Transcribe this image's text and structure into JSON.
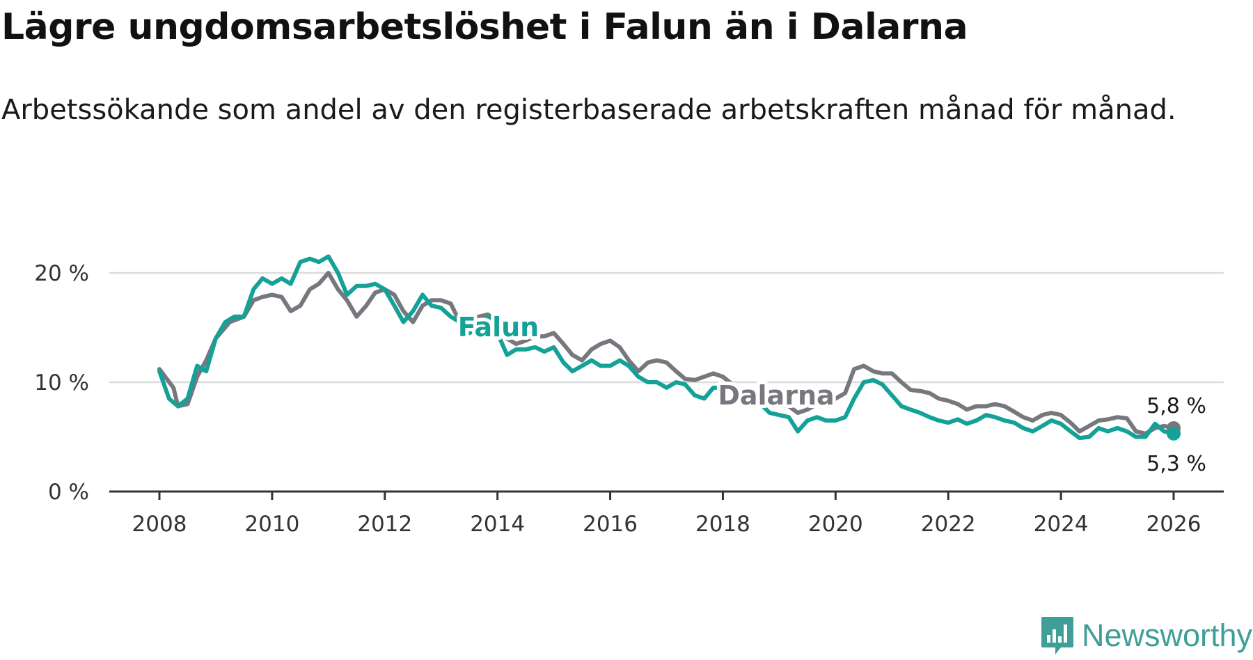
{
  "title": "Lägre ungdomsarbetslöshet i Falun än i Dalarna",
  "subtitle": "Arbetssökande som andel av den registerbaserade arbetskraften månad för månad.",
  "brand": {
    "name": "Newsworthy",
    "icon": "newsworthy-chart-icon"
  },
  "colors": {
    "falun": "#14a197",
    "dalarna": "#77777e",
    "grid": "#dcdcdc",
    "axis": "#333333",
    "brand": "#3f9f98"
  },
  "chart_data": {
    "type": "line",
    "title": "Lägre ungdomsarbetslöshet i Falun än i Dalarna",
    "xlabel": "",
    "ylabel": "",
    "xlim": [
      2007.9,
      2026.5
    ],
    "ylim": [
      0,
      22
    ],
    "x_ticks": [
      2008,
      2010,
      2012,
      2014,
      2016,
      2018,
      2020,
      2022,
      2024,
      2026
    ],
    "x_tick_labels": [
      "2008",
      "2010",
      "2012",
      "2014",
      "2016",
      "2018",
      "2020",
      "2022",
      "2024",
      "2026"
    ],
    "y_ticks": [
      0,
      10,
      20
    ],
    "y_tick_labels": [
      "0 %",
      "10 %",
      "20 %"
    ],
    "grid": true,
    "series": [
      {
        "name": "Dalarna",
        "label": "Dalarna",
        "end_label": "5,8 %",
        "last_value": 5.8,
        "points": [
          [
            2008.0,
            11.2
          ],
          [
            2008.25,
            9.5
          ],
          [
            2008.33,
            7.8
          ],
          [
            2008.5,
            8.0
          ],
          [
            2008.67,
            10.5
          ],
          [
            2008.83,
            12.0
          ],
          [
            2009.0,
            14.0
          ],
          [
            2009.25,
            15.5
          ],
          [
            2009.5,
            16.0
          ],
          [
            2009.67,
            17.5
          ],
          [
            2009.83,
            17.8
          ],
          [
            2010.0,
            18.0
          ],
          [
            2010.17,
            17.8
          ],
          [
            2010.33,
            16.5
          ],
          [
            2010.5,
            17.0
          ],
          [
            2010.67,
            18.5
          ],
          [
            2010.83,
            19.0
          ],
          [
            2011.0,
            20.0
          ],
          [
            2011.17,
            18.5
          ],
          [
            2011.33,
            17.5
          ],
          [
            2011.5,
            16.0
          ],
          [
            2011.67,
            17.0
          ],
          [
            2011.83,
            18.2
          ],
          [
            2012.0,
            18.5
          ],
          [
            2012.17,
            18.0
          ],
          [
            2012.33,
            16.5
          ],
          [
            2012.5,
            15.5
          ],
          [
            2012.67,
            17.0
          ],
          [
            2012.83,
            17.5
          ],
          [
            2013.0,
            17.5
          ],
          [
            2013.17,
            17.2
          ],
          [
            2013.33,
            15.5
          ],
          [
            2013.5,
            15.8
          ],
          [
            2013.67,
            16.0
          ],
          [
            2013.83,
            16.2
          ],
          [
            2014.0,
            15.5
          ],
          [
            2014.17,
            14.0
          ],
          [
            2014.33,
            13.5
          ],
          [
            2014.5,
            13.8
          ],
          [
            2014.67,
            14.2
          ],
          [
            2014.83,
            14.2
          ],
          [
            2015.0,
            14.5
          ],
          [
            2015.17,
            13.5
          ],
          [
            2015.33,
            12.5
          ],
          [
            2015.5,
            12.0
          ],
          [
            2015.67,
            13.0
          ],
          [
            2015.83,
            13.5
          ],
          [
            2016.0,
            13.8
          ],
          [
            2016.17,
            13.2
          ],
          [
            2016.33,
            12.0
          ],
          [
            2016.5,
            11.0
          ],
          [
            2016.67,
            11.8
          ],
          [
            2016.83,
            12.0
          ],
          [
            2017.0,
            11.8
          ],
          [
            2017.17,
            11.0
          ],
          [
            2017.33,
            10.3
          ],
          [
            2017.5,
            10.2
          ],
          [
            2017.67,
            10.5
          ],
          [
            2017.83,
            10.8
          ],
          [
            2018.0,
            10.5
          ],
          [
            2018.17,
            9.8
          ],
          [
            2018.33,
            8.5
          ],
          [
            2018.5,
            8.3
          ],
          [
            2018.67,
            8.2
          ],
          [
            2018.83,
            8.0
          ],
          [
            2019.0,
            8.0
          ],
          [
            2019.17,
            7.8
          ],
          [
            2019.33,
            7.2
          ],
          [
            2019.5,
            7.5
          ],
          [
            2019.67,
            8.0
          ],
          [
            2019.83,
            8.2
          ],
          [
            2020.0,
            8.5
          ],
          [
            2020.17,
            9.0
          ],
          [
            2020.33,
            11.2
          ],
          [
            2020.5,
            11.5
          ],
          [
            2020.67,
            11.0
          ],
          [
            2020.83,
            10.8
          ],
          [
            2021.0,
            10.8
          ],
          [
            2021.17,
            10.0
          ],
          [
            2021.33,
            9.3
          ],
          [
            2021.5,
            9.2
          ],
          [
            2021.67,
            9.0
          ],
          [
            2021.83,
            8.5
          ],
          [
            2022.0,
            8.3
          ],
          [
            2022.17,
            8.0
          ],
          [
            2022.33,
            7.5
          ],
          [
            2022.5,
            7.8
          ],
          [
            2022.67,
            7.8
          ],
          [
            2022.83,
            8.0
          ],
          [
            2023.0,
            7.8
          ],
          [
            2023.17,
            7.3
          ],
          [
            2023.33,
            6.8
          ],
          [
            2023.5,
            6.5
          ],
          [
            2023.67,
            7.0
          ],
          [
            2023.83,
            7.2
          ],
          [
            2024.0,
            7.0
          ],
          [
            2024.17,
            6.3
          ],
          [
            2024.33,
            5.5
          ],
          [
            2024.5,
            6.0
          ],
          [
            2024.67,
            6.5
          ],
          [
            2024.83,
            6.6
          ],
          [
            2025.0,
            6.8
          ],
          [
            2025.17,
            6.7
          ],
          [
            2025.33,
            5.5
          ],
          [
            2025.5,
            5.3
          ],
          [
            2025.67,
            5.8
          ],
          [
            2025.83,
            6.0
          ],
          [
            2026.0,
            5.8
          ]
        ]
      },
      {
        "name": "Falun",
        "label": "Falun",
        "end_label": "5,3 %",
        "last_value": 5.3,
        "points": [
          [
            2008.0,
            11.0
          ],
          [
            2008.17,
            8.5
          ],
          [
            2008.33,
            7.8
          ],
          [
            2008.5,
            8.5
          ],
          [
            2008.67,
            11.5
          ],
          [
            2008.83,
            11.0
          ],
          [
            2009.0,
            14.0
          ],
          [
            2009.17,
            15.5
          ],
          [
            2009.33,
            16.0
          ],
          [
            2009.5,
            16.0
          ],
          [
            2009.67,
            18.5
          ],
          [
            2009.83,
            19.5
          ],
          [
            2010.0,
            19.0
          ],
          [
            2010.17,
            19.5
          ],
          [
            2010.33,
            19.0
          ],
          [
            2010.5,
            21.0
          ],
          [
            2010.67,
            21.3
          ],
          [
            2010.83,
            21.0
          ],
          [
            2011.0,
            21.5
          ],
          [
            2011.17,
            20.0
          ],
          [
            2011.33,
            18.0
          ],
          [
            2011.5,
            18.8
          ],
          [
            2011.67,
            18.8
          ],
          [
            2011.83,
            19.0
          ],
          [
            2012.0,
            18.5
          ],
          [
            2012.17,
            17.0
          ],
          [
            2012.33,
            15.5
          ],
          [
            2012.5,
            16.5
          ],
          [
            2012.67,
            18.0
          ],
          [
            2012.83,
            17.0
          ],
          [
            2013.0,
            16.8
          ],
          [
            2013.17,
            16.0
          ],
          [
            2013.33,
            15.5
          ],
          [
            2013.5,
            14.5
          ],
          [
            2013.67,
            15.0
          ],
          [
            2013.83,
            16.0
          ],
          [
            2014.0,
            14.5
          ],
          [
            2014.17,
            12.5
          ],
          [
            2014.33,
            13.0
          ],
          [
            2014.5,
            13.0
          ],
          [
            2014.67,
            13.2
          ],
          [
            2014.83,
            12.8
          ],
          [
            2015.0,
            13.2
          ],
          [
            2015.17,
            11.8
          ],
          [
            2015.33,
            11.0
          ],
          [
            2015.5,
            11.5
          ],
          [
            2015.67,
            12.0
          ],
          [
            2015.83,
            11.5
          ],
          [
            2016.0,
            11.5
          ],
          [
            2016.17,
            12.0
          ],
          [
            2016.33,
            11.5
          ],
          [
            2016.5,
            10.5
          ],
          [
            2016.67,
            10.0
          ],
          [
            2016.83,
            10.0
          ],
          [
            2017.0,
            9.5
          ],
          [
            2017.17,
            10.0
          ],
          [
            2017.33,
            9.8
          ],
          [
            2017.5,
            8.8
          ],
          [
            2017.67,
            8.5
          ],
          [
            2017.83,
            9.5
          ],
          [
            2018.0,
            9.5
          ],
          [
            2018.17,
            9.5
          ],
          [
            2018.33,
            8.0
          ],
          [
            2018.5,
            8.3
          ],
          [
            2018.67,
            8.0
          ],
          [
            2018.83,
            7.2
          ],
          [
            2019.0,
            7.0
          ],
          [
            2019.17,
            6.8
          ],
          [
            2019.33,
            5.5
          ],
          [
            2019.5,
            6.5
          ],
          [
            2019.67,
            6.8
          ],
          [
            2019.83,
            6.5
          ],
          [
            2020.0,
            6.5
          ],
          [
            2020.17,
            6.8
          ],
          [
            2020.33,
            8.5
          ],
          [
            2020.5,
            10.0
          ],
          [
            2020.67,
            10.2
          ],
          [
            2020.83,
            9.8
          ],
          [
            2021.0,
            8.8
          ],
          [
            2021.17,
            7.8
          ],
          [
            2021.33,
            7.5
          ],
          [
            2021.5,
            7.2
          ],
          [
            2021.67,
            6.8
          ],
          [
            2021.83,
            6.5
          ],
          [
            2022.0,
            6.3
          ],
          [
            2022.17,
            6.6
          ],
          [
            2022.33,
            6.2
          ],
          [
            2022.5,
            6.5
          ],
          [
            2022.67,
            7.0
          ],
          [
            2022.83,
            6.8
          ],
          [
            2023.0,
            6.5
          ],
          [
            2023.17,
            6.3
          ],
          [
            2023.33,
            5.8
          ],
          [
            2023.5,
            5.5
          ],
          [
            2023.67,
            6.0
          ],
          [
            2023.83,
            6.5
          ],
          [
            2024.0,
            6.2
          ],
          [
            2024.17,
            5.5
          ],
          [
            2024.33,
            4.9
          ],
          [
            2024.5,
            5.0
          ],
          [
            2024.67,
            5.8
          ],
          [
            2024.83,
            5.5
          ],
          [
            2025.0,
            5.8
          ],
          [
            2025.17,
            5.5
          ],
          [
            2025.33,
            5.0
          ],
          [
            2025.5,
            5.0
          ],
          [
            2025.67,
            6.2
          ],
          [
            2025.83,
            5.5
          ],
          [
            2026.0,
            5.3
          ]
        ]
      }
    ]
  }
}
